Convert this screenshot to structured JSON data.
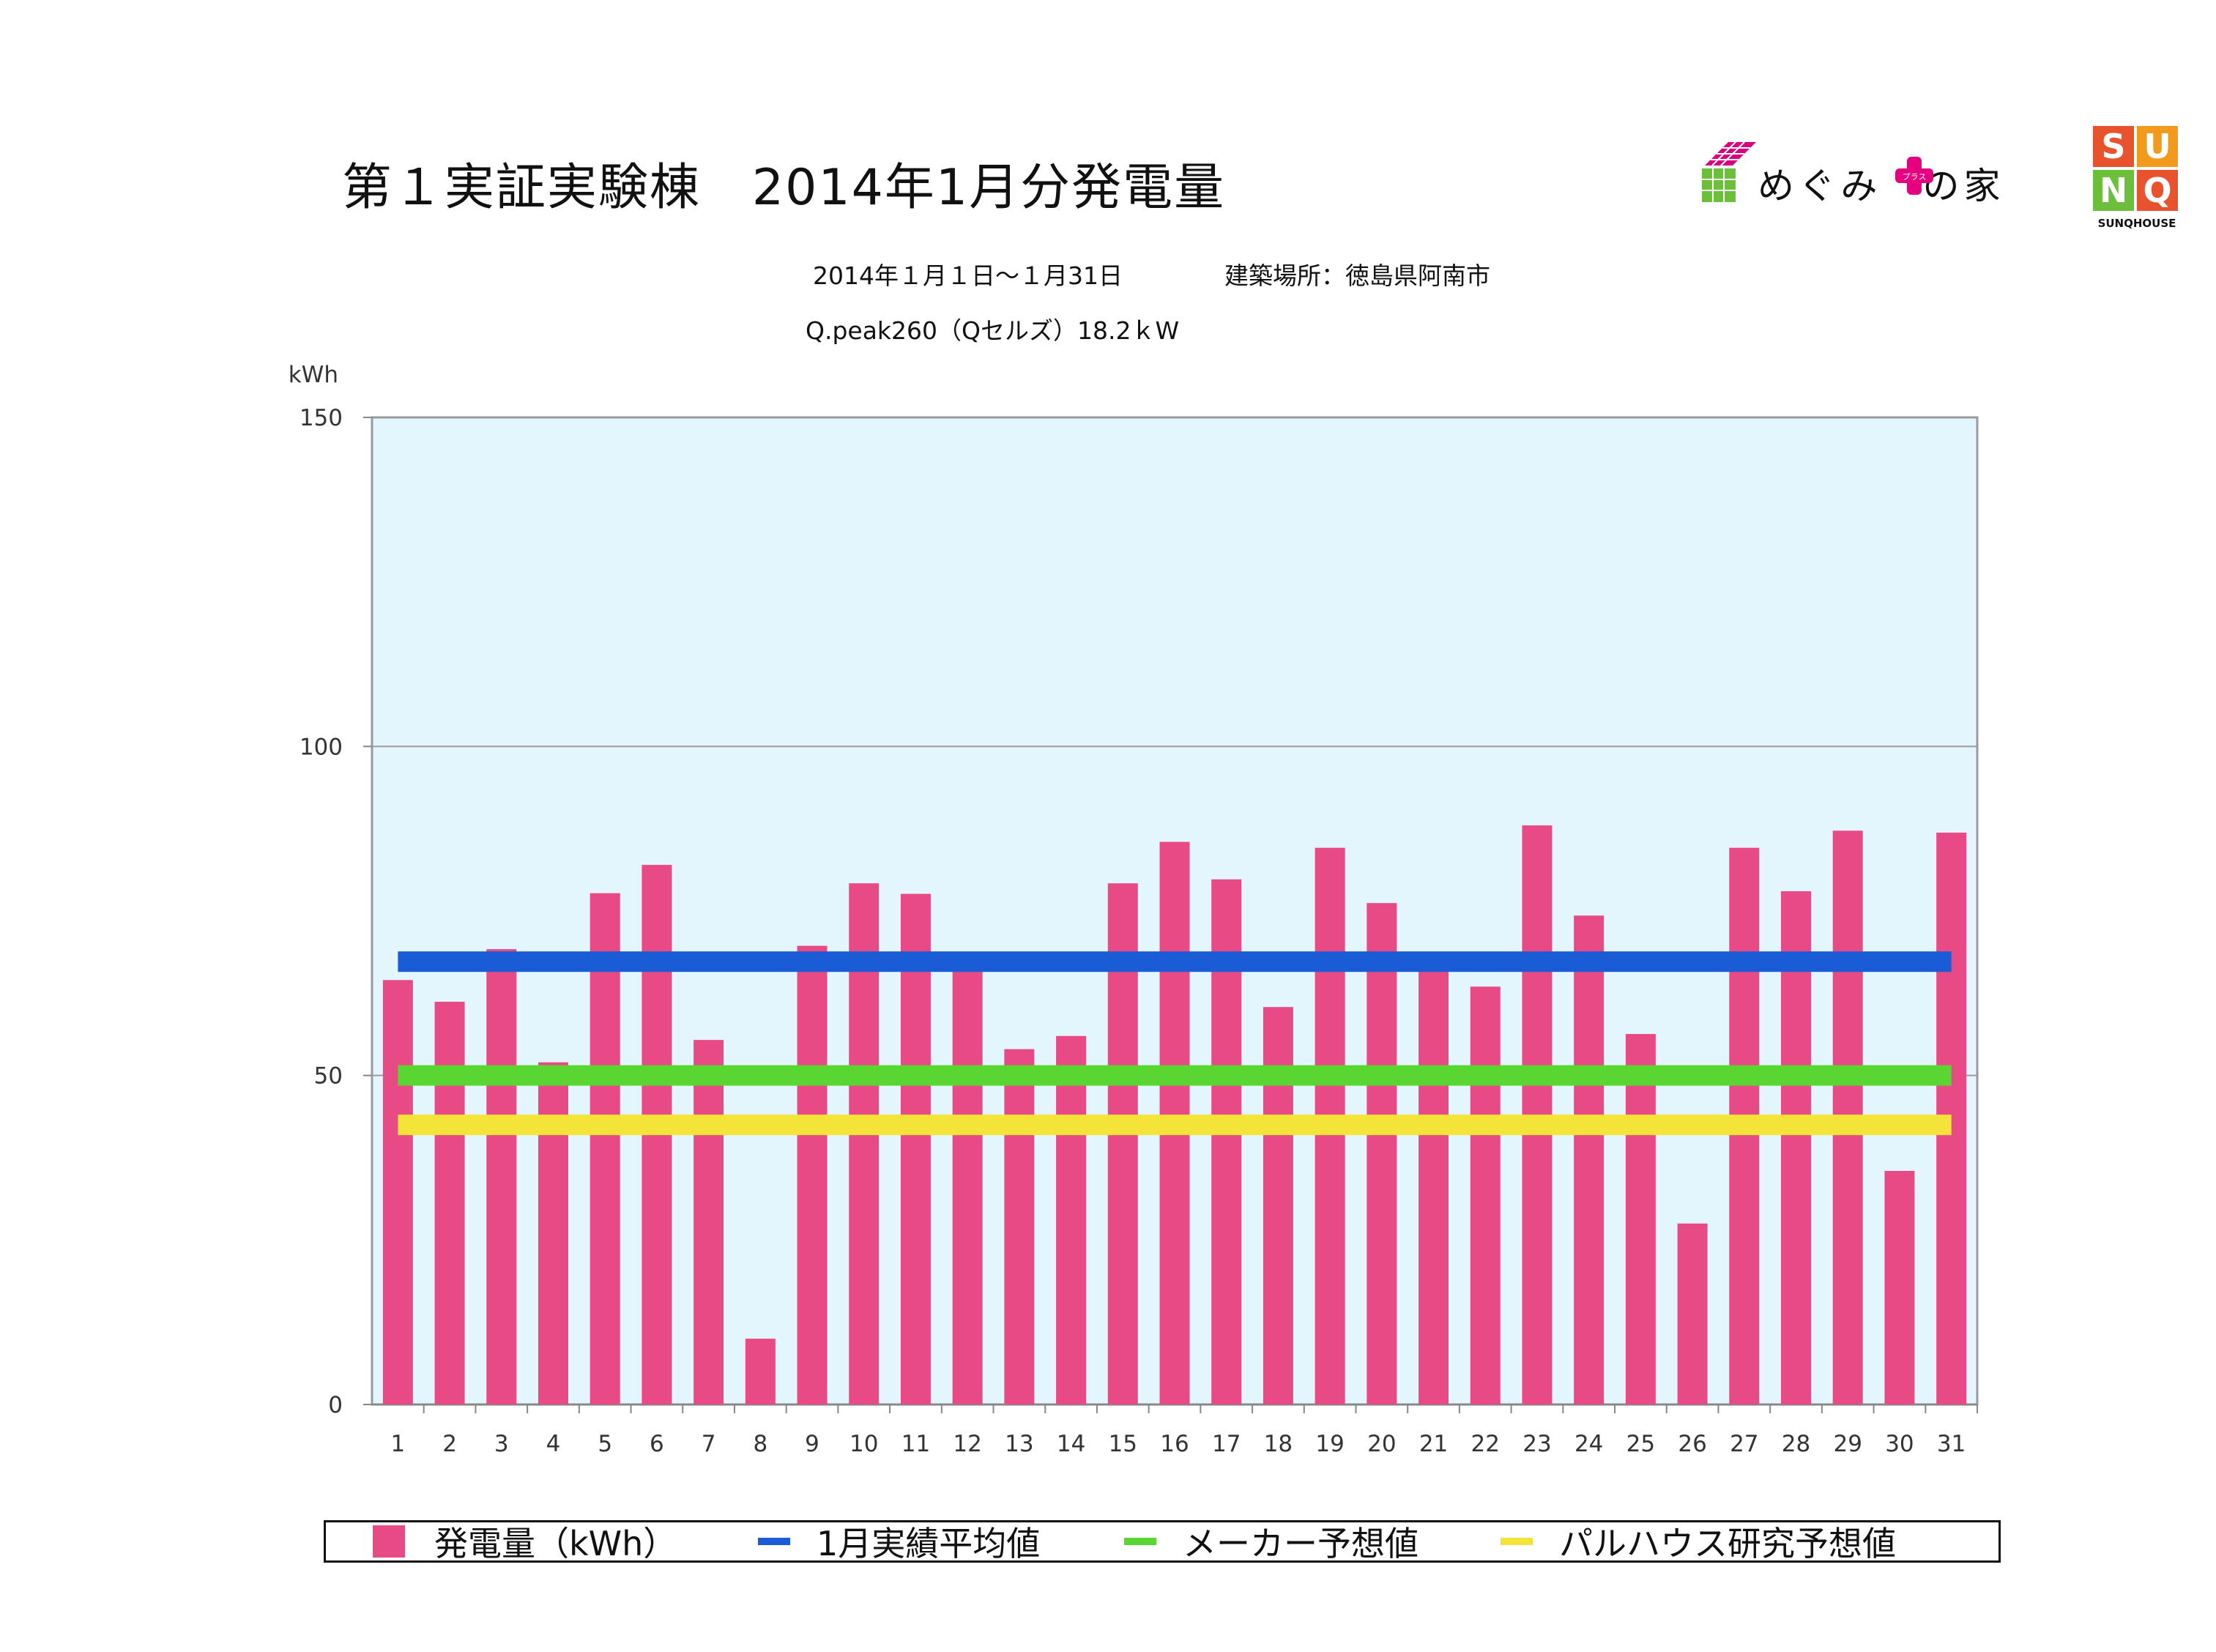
{
  "header": {
    "title": "第１実証実験棟　2014年1月分発電量",
    "period": "2014年１月１日〜１月31日",
    "location": "建築場所：徳島県阿南市",
    "panel_info": "Q.peak260（Qセルズ）18.2ｋW"
  },
  "logos": {
    "megumi_text": "めぐみ　の家",
    "megumi_plus_label": "プラス",
    "sunq_letters": [
      "S",
      "U",
      "N",
      "Q"
    ],
    "sunq_caption": "SUNQHOUSE"
  },
  "colors": {
    "bar": "#e84a85",
    "avg_line": "#1a5bd6",
    "maker_line": "#5ad632",
    "research_line": "#f4e43a",
    "plot_bg": "#e3f6fd"
  },
  "legend": {
    "bar_label": "発電量（kWh）",
    "avg_label": "1月実績平均値",
    "maker_label": "メーカー予想値",
    "research_label": "パルハウス研究予想値"
  },
  "chart_data": {
    "type": "bar",
    "title": "第１実証実験棟　2014年1月分発電量",
    "ylabel": "kWh",
    "xlabel": "",
    "ylim": [
      0,
      150
    ],
    "yticks": [
      0,
      50,
      100,
      150
    ],
    "grid": true,
    "legend_position": "bottom",
    "categories": [
      "1",
      "2",
      "3",
      "4",
      "5",
      "6",
      "7",
      "8",
      "9",
      "10",
      "11",
      "12",
      "13",
      "14",
      "15",
      "16",
      "17",
      "18",
      "19",
      "20",
      "21",
      "22",
      "23",
      "24",
      "25",
      "26",
      "27",
      "28",
      "29",
      "30",
      "31"
    ],
    "series": [
      {
        "name": "発電量（kWh）",
        "values": [
          64.5,
          61.2,
          69.2,
          52.0,
          77.7,
          82.0,
          55.4,
          10.0,
          69.7,
          79.2,
          77.6,
          66.5,
          54.0,
          56.0,
          79.2,
          85.5,
          79.8,
          60.4,
          84.6,
          76.2,
          67.3,
          63.5,
          88.0,
          74.3,
          56.3,
          27.5,
          84.6,
          78.0,
          87.2,
          35.5,
          86.9
        ]
      }
    ],
    "reference_lines": [
      {
        "name": "1月実績平均値",
        "value": 67.3
      },
      {
        "name": "メーカー予想値",
        "value": 50.0
      },
      {
        "name": "パルハウス研究予想値",
        "value": 42.5
      }
    ]
  }
}
